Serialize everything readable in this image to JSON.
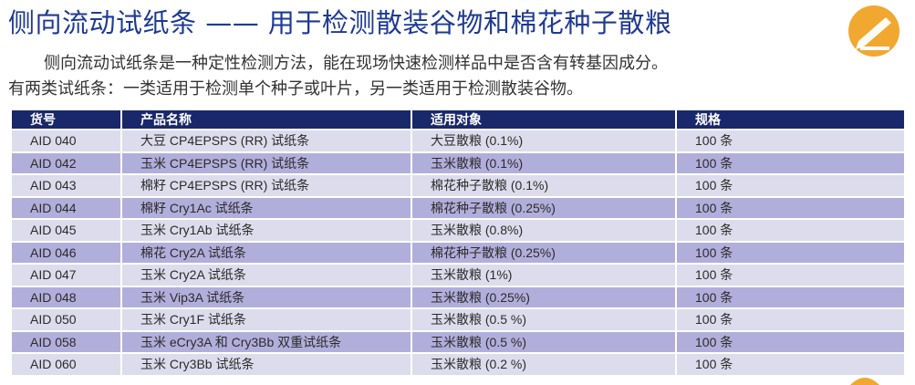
{
  "title": "侧向流动试纸条 —— 用于检测散装谷物和棉花种子散粮",
  "intro": {
    "line1": "侧向流动试纸条是一种定性检测方法，能在现场快速检测样品中是否含有转基因成分。",
    "line2": "有两类试纸条：一类适用于检测单个种子或叶片，另一类适用于检测散装谷物。"
  },
  "logo": {
    "icon": "pencil-logo-icon",
    "accent": "#f0a830"
  },
  "table": {
    "headers": [
      "货号",
      "产品名称",
      "适用对象",
      "规格"
    ],
    "header_bg": "#19286a",
    "rows": [
      [
        "AID 040",
        "大豆 CP4EPSPS (RR) 试纸条",
        "大豆散粮 (0.1%)",
        "100 条"
      ],
      [
        "AID 042",
        "玉米 CP4EPSPS (RR) 试纸条",
        "玉米散粮 (0.1%)",
        "100 条"
      ],
      [
        "AID 043",
        "棉籽 CP4EPSPS (RR) 试纸条",
        "棉花种子散粮 (0.1%)",
        "100 条"
      ],
      [
        "AID 044",
        "棉籽 Cry1Ac 试纸条",
        "棉花种子散粮 (0.25%)",
        "100 条"
      ],
      [
        "AID 045",
        "玉米 Cry1Ab 试纸条",
        "玉米散粮 (0.8%)",
        "100 条"
      ],
      [
        "AID 046",
        "棉花 Cry2A 试纸条",
        "棉花种子散粮 (0.25%)",
        "100 条"
      ],
      [
        "AID 047",
        "玉米 Cry2A 试纸条",
        "玉米散粮 (1%)",
        "100 条"
      ],
      [
        "AID 048",
        "玉米 Vip3A 试纸条",
        "玉米散粮 (0.25%)",
        "100 条"
      ],
      [
        "AID 050",
        "玉米 Cry1F 试纸条",
        "玉米散粮 (0.5 %)",
        "100 条"
      ],
      [
        "AID 058",
        "玉米 eCry3A 和 Cry3Bb 双重试纸条",
        "玉米散粮 (0.5 %)",
        "100 条"
      ],
      [
        "AID 060",
        "玉米 Cry3Bb 试纸条",
        "玉米散粮 (0.2 %)",
        "100 条"
      ]
    ]
  }
}
